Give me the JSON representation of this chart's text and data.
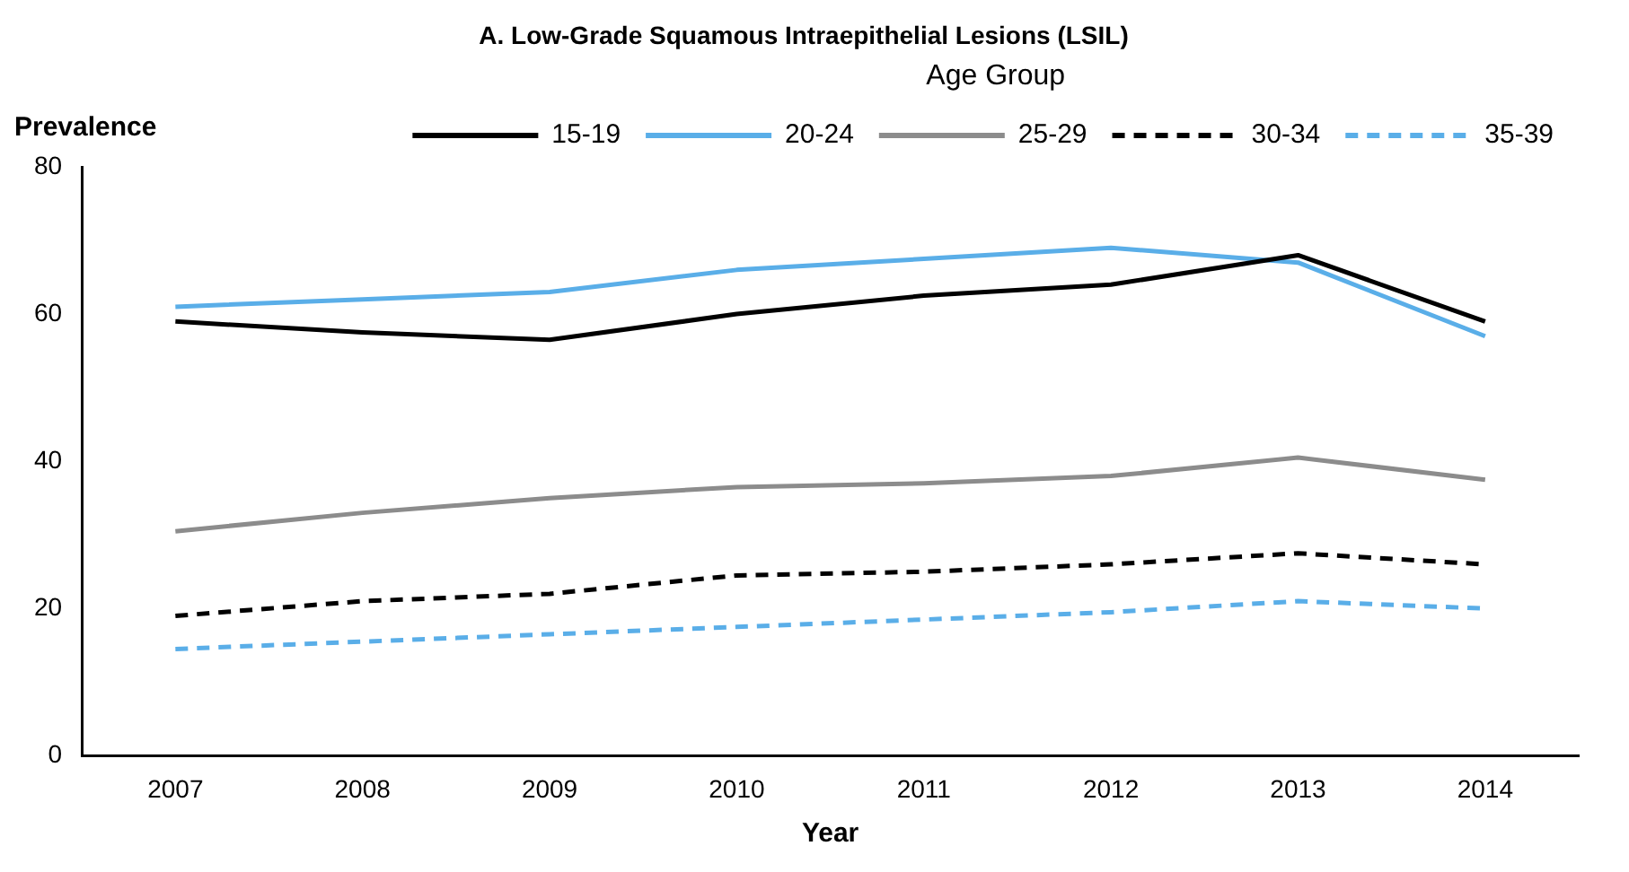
{
  "chart_data": {
    "type": "line",
    "title": "A. Low-Grade Squamous Intraepithelial Lesions (LSIL)",
    "xlabel": "Year",
    "ylabel": "Prevalence",
    "legend_title": "Age Group",
    "legend": "top right",
    "grid": false,
    "marker": "none",
    "categories": [
      "2007",
      "2008",
      "2009",
      "2010",
      "2011",
      "2012",
      "2013",
      "2014"
    ],
    "ylim": [
      0,
      80
    ],
    "yticks": [
      0,
      20,
      40,
      60,
      80
    ],
    "series": [
      {
        "name": "15-19",
        "color": "#000000",
        "line_style": "solid",
        "values": [
          59,
          57.5,
          56.5,
          60,
          62.5,
          64,
          68,
          59
        ]
      },
      {
        "name": "20-24",
        "color": "#5aaee8",
        "line_style": "solid",
        "values": [
          61,
          62,
          63,
          66,
          67.5,
          69,
          67,
          57
        ]
      },
      {
        "name": "25-29",
        "color": "#8c8c8c",
        "line_style": "solid",
        "values": [
          30.5,
          33,
          35,
          36.5,
          37,
          38,
          40.5,
          37.5
        ]
      },
      {
        "name": "30-34",
        "color": "#000000",
        "line_style": "dashed",
        "values": [
          19,
          21,
          22,
          24.5,
          25,
          26,
          27.5,
          26
        ]
      },
      {
        "name": "35-39",
        "color": "#5aaee8",
        "line_style": "dashed",
        "values": [
          14.5,
          15.5,
          16.5,
          17.5,
          18.5,
          19.5,
          21,
          20
        ]
      }
    ]
  }
}
